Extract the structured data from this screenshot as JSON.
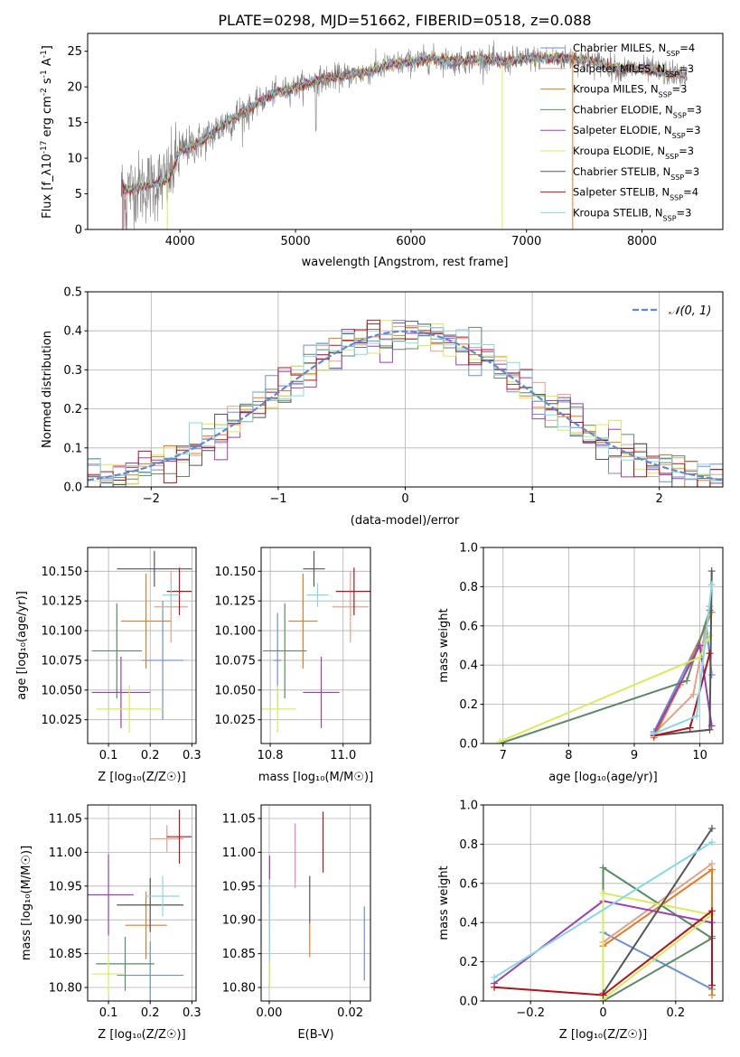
{
  "title": "PLATE=0298, MJD=51662, FIBERID=0518, z=0.088",
  "colors": {
    "Chabrier MILES": "#6a8fd6",
    "Salpeter MILES": "#e8a088",
    "Kroupa MILES": "#e57b22",
    "Chabrier ELODIE": "#5b8a64",
    "Salpeter ELODIE": "#9b3fb5",
    "Kroupa ELODIE": "#d8ec5a",
    "Chabrier STELIB": "#555555",
    "Salpeter STELIB": "#b3131b",
    "Kroupa STELIB": "#85d8e8",
    "extra_pink": "#e888b8",
    "gaussian": "#5b8ad6",
    "data": "#808080"
  },
  "chart_data": [
    {
      "id": "spectrum",
      "type": "line",
      "xlabel": "wavelength [Angstrom, rest frame]",
      "ylabel": "Flux [f_λ10^{-17} erg cm^{-2} s^{-1} A^{-1}]",
      "xlim": [
        3200,
        8700
      ],
      "ylim": [
        0,
        27.5
      ],
      "xticks": [
        4000,
        5000,
        6000,
        7000,
        8000
      ],
      "yticks": [
        0,
        5,
        10,
        15,
        20,
        25
      ],
      "grid": false,
      "legend": "right",
      "data_range": [
        3490,
        8390
      ],
      "continuum": [
        [
          3490,
          5.5
        ],
        [
          3700,
          6.0
        ],
        [
          3900,
          7.0
        ],
        [
          4000,
          11.0
        ],
        [
          4200,
          12.5
        ],
        [
          4400,
          15.0
        ],
        [
          4600,
          17.0
        ],
        [
          4800,
          19.0
        ],
        [
          5000,
          20.0
        ],
        [
          5200,
          21.0
        ],
        [
          5400,
          21.5
        ],
        [
          5600,
          22.0
        ],
        [
          5800,
          23.0
        ],
        [
          6000,
          23.5
        ],
        [
          6200,
          24.0
        ],
        [
          6400,
          23.5
        ],
        [
          6600,
          24.0
        ],
        [
          6800,
          23.5
        ],
        [
          7000,
          24.0
        ],
        [
          7200,
          24.0
        ],
        [
          7400,
          24.0
        ],
        [
          7600,
          23.5
        ],
        [
          7800,
          22.5
        ],
        [
          8000,
          22.5
        ],
        [
          8200,
          22.0
        ],
        [
          8390,
          21.5
        ]
      ],
      "series": [
        {
          "legend": "Chabrier MILES, N",
          "sub": "SSP",
          "suffix": "=4"
        },
        {
          "legend": "Salpeter MILES, N",
          "sub": "SSP",
          "suffix": "=3"
        },
        {
          "legend": "Kroupa MILES, N",
          "sub": "SSP",
          "suffix": "=3"
        },
        {
          "legend": "Chabrier ELODIE, N",
          "sub": "SSP",
          "suffix": "=3"
        },
        {
          "legend": "Salpeter ELODIE, N",
          "sub": "SSP",
          "suffix": "=3"
        },
        {
          "legend": "Kroupa ELODIE, N",
          "sub": "SSP",
          "suffix": "=3"
        },
        {
          "legend": "Chabrier STELIB, N",
          "sub": "SSP",
          "suffix": "=3"
        },
        {
          "legend": "Salpeter STELIB, N",
          "sub": "SSP",
          "suffix": "=4"
        },
        {
          "legend": "Kroupa STELIB, N",
          "sub": "SSP",
          "suffix": "=3"
        }
      ]
    },
    {
      "id": "residuals",
      "type": "histogram",
      "xlabel": "(data-model)/error",
      "ylabel": "Normed distribution",
      "xlim": [
        -2.5,
        2.5
      ],
      "ylim": [
        0,
        0.5
      ],
      "xticks": [
        -2,
        -1,
        0,
        1,
        2
      ],
      "yticks": [
        0.0,
        0.1,
        0.2,
        0.3,
        0.4,
        0.5
      ],
      "grid": true,
      "legend": "top-right",
      "legend_label": "𝒩(0, 1)",
      "bin_width": 0.1
    },
    {
      "id": "age_vs_Z",
      "type": "errorbar",
      "xlabel": "Z [log₁₀(Z/Z☉)]",
      "ylabel": "age  [log₁₀(age/yr)]",
      "xlim": [
        0.05,
        0.31
      ],
      "ylim": [
        10.005,
        10.17
      ],
      "xticks": [
        0.1,
        0.2,
        0.3
      ],
      "yticks": [
        10.025,
        10.05,
        10.075,
        10.1,
        10.125,
        10.15
      ],
      "grid": true,
      "points": [
        {
          "model": "Chabrier MILES",
          "x": 0.23,
          "y": 10.075,
          "xerr": 0.05,
          "yerr": 0.05
        },
        {
          "model": "Salpeter MILES",
          "x": 0.25,
          "y": 10.12,
          "xerr": 0.04,
          "yerr": 0.03
        },
        {
          "model": "Kroupa MILES",
          "x": 0.19,
          "y": 10.108,
          "xerr": 0.06,
          "yerr": 0.04
        },
        {
          "model": "Chabrier ELODIE",
          "x": 0.12,
          "y": 10.083,
          "xerr": 0.06,
          "yerr": 0.04
        },
        {
          "model": "Salpeter ELODIE",
          "x": 0.13,
          "y": 10.048,
          "xerr": 0.07,
          "yerr": 0.03
        },
        {
          "model": "Kroupa ELODIE",
          "x": 0.15,
          "y": 10.034,
          "xerr": 0.08,
          "yerr": 0.02
        },
        {
          "model": "Chabrier STELIB",
          "x": 0.21,
          "y": 10.152,
          "xerr": 0.09,
          "yerr": 0.015
        },
        {
          "model": "Salpeter STELIB",
          "x": 0.27,
          "y": 10.133,
          "xerr": 0.03,
          "yerr": 0.02
        },
        {
          "model": "Kroupa STELIB",
          "x": 0.25,
          "y": 10.13,
          "xerr": 0.02,
          "yerr": 0.01
        }
      ]
    },
    {
      "id": "age_vs_mass",
      "type": "errorbar",
      "xlabel": "mass [log₁₀(M/M☉)]",
      "ylabel": "",
      "xlim": [
        10.775,
        11.075
      ],
      "ylim": [
        10.005,
        10.17
      ],
      "xticks": [
        10.8,
        11.0
      ],
      "yticks": [
        10.025,
        10.05,
        10.075,
        10.1,
        10.125,
        10.15
      ],
      "grid": true,
      "points": [
        {
          "model": "Chabrier MILES",
          "x": 10.82,
          "y": 10.075,
          "xerr": 0.01,
          "yerr": 0.04
        },
        {
          "model": "Salpeter MILES",
          "x": 11.02,
          "y": 10.12,
          "xerr": 0.05,
          "yerr": 0.03
        },
        {
          "model": "Kroupa MILES",
          "x": 10.89,
          "y": 10.108,
          "xerr": 0.04,
          "yerr": 0.04
        },
        {
          "model": "Chabrier ELODIE",
          "x": 10.84,
          "y": 10.083,
          "xerr": 0.06,
          "yerr": 0.04
        },
        {
          "model": "Salpeter ELODIE",
          "x": 10.94,
          "y": 10.048,
          "xerr": 0.05,
          "yerr": 0.03
        },
        {
          "model": "Kroupa ELODIE",
          "x": 10.82,
          "y": 10.034,
          "xerr": 0.05,
          "yerr": 0.02
        },
        {
          "model": "Chabrier STELIB",
          "x": 10.92,
          "y": 10.152,
          "xerr": 0.03,
          "yerr": 0.015
        },
        {
          "model": "Salpeter STELIB",
          "x": 11.03,
          "y": 10.133,
          "xerr": 0.05,
          "yerr": 0.02
        },
        {
          "model": "Kroupa STELIB",
          "x": 10.93,
          "y": 10.13,
          "xerr": 0.03,
          "yerr": 0.01
        }
      ]
    },
    {
      "id": "mass_weight_vs_age",
      "type": "line",
      "xlabel": "age  [log₁₀(age/yr)]",
      "ylabel": "mass weight",
      "xlim": [
        6.7,
        10.35
      ],
      "ylim": [
        0,
        1
      ],
      "xticks": [
        7,
        8,
        9,
        10
      ],
      "yticks": [
        0.0,
        0.2,
        0.4,
        0.6,
        0.8,
        1.0
      ],
      "grid": true,
      "series": [
        {
          "model": "Chabrier MILES",
          "x": [
            9.3,
            10.1,
            10.18
          ],
          "y": [
            0.06,
            0.6,
            0.35
          ]
        },
        {
          "model": "Salpeter MILES",
          "x": [
            9.3,
            9.9,
            10.15
          ],
          "y": [
            0.05,
            0.25,
            0.7
          ]
        },
        {
          "model": "Kroupa MILES",
          "x": [
            9.3,
            9.7,
            10.18
          ],
          "y": [
            0.03,
            0.3,
            0.67
          ]
        },
        {
          "model": "Chabrier ELODIE",
          "x": [
            6.95,
            9.8,
            10.15
          ],
          "y": [
            0.0,
            0.32,
            0.68
          ]
        },
        {
          "model": "Salpeter ELODIE",
          "x": [
            9.3,
            10.0,
            10.18
          ],
          "y": [
            0.05,
            0.5,
            0.09
          ]
        },
        {
          "model": "Kroupa ELODIE",
          "x": [
            6.95,
            10.0,
            10.15
          ],
          "y": [
            0.01,
            0.44,
            0.55
          ]
        },
        {
          "model": "Chabrier STELIB",
          "x": [
            9.3,
            10.15,
            10.18
          ],
          "y": [
            0.04,
            0.07,
            0.88
          ]
        },
        {
          "model": "Salpeter STELIB",
          "x": [
            9.3,
            9.85,
            10.15
          ],
          "y": [
            0.04,
            0.08,
            0.46
          ]
        },
        {
          "model": "Kroupa STELIB",
          "x": [
            9.3,
            9.95,
            10.18
          ],
          "y": [
            0.05,
            0.14,
            0.81
          ]
        }
      ]
    },
    {
      "id": "mass_vs_Z",
      "type": "errorbar",
      "xlabel": "Z [log₁₀(Z/Z☉)]",
      "ylabel": "mass [log₁₀(M/M☉)]",
      "xlim": [
        0.05,
        0.31
      ],
      "ylim": [
        10.78,
        11.07
      ],
      "xticks": [
        0.1,
        0.2,
        0.3
      ],
      "yticks": [
        10.8,
        10.85,
        10.9,
        10.95,
        11.0,
        11.05
      ],
      "grid": true,
      "points": [
        {
          "model": "Chabrier MILES",
          "x": 0.2,
          "y": 10.818,
          "xerr": 0.08,
          "yerr": 0.05
        },
        {
          "model": "Salpeter MILES",
          "x": 0.24,
          "y": 11.02,
          "xerr": 0.04,
          "yerr": 0.02
        },
        {
          "model": "Kroupa MILES",
          "x": 0.19,
          "y": 10.892,
          "xerr": 0.05,
          "yerr": 0.05
        },
        {
          "model": "Chabrier ELODIE",
          "x": 0.14,
          "y": 10.835,
          "xerr": 0.07,
          "yerr": 0.04
        },
        {
          "model": "Salpeter ELODIE",
          "x": 0.1,
          "y": 10.937,
          "xerr": 0.06,
          "yerr": 0.06
        },
        {
          "model": "Kroupa ELODIE",
          "x": 0.1,
          "y": 10.82,
          "xerr": 0.04,
          "yerr": 0.03
        },
        {
          "model": "Chabrier STELIB",
          "x": 0.2,
          "y": 10.922,
          "xerr": 0.08,
          "yerr": 0.04
        },
        {
          "model": "Salpeter STELIB",
          "x": 0.27,
          "y": 11.023,
          "xerr": 0.03,
          "yerr": 0.04
        },
        {
          "model": "Kroupa STELIB",
          "x": 0.23,
          "y": 10.935,
          "xerr": 0.04,
          "yerr": 0.03
        }
      ]
    },
    {
      "id": "mass_vs_EBV",
      "type": "errorbar",
      "xlabel": "E(B-V)",
      "ylabel": "",
      "xlim": [
        -0.002,
        0.025
      ],
      "ylim": [
        10.78,
        11.07
      ],
      "xticks": [
        0.0,
        0.02
      ],
      "yticks": [
        10.8,
        10.85,
        10.9,
        10.95,
        11.0,
        11.05
      ],
      "grid": true,
      "points": [
        {
          "model": "Chabrier MILES",
          "x": 0.0235,
          "y": 10.865,
          "xerr": 0.0,
          "yerr": 0.055
        },
        {
          "model": "Kroupa MILES",
          "x": 0.01,
          "y": 10.87,
          "xerr": 0.0,
          "yerr": 0.025
        },
        {
          "model": "Salpeter ELODIE",
          "x": 0.0001,
          "y": 10.96,
          "xerr": 0.0,
          "yerr": 0.035
        },
        {
          "model": "Kroupa ELODIE",
          "x": 0.0001,
          "y": 10.84,
          "xerr": 0.0,
          "yerr": 0.04
        },
        {
          "model": "Chabrier STELIB",
          "x": 0.01,
          "y": 10.93,
          "xerr": 0.0,
          "yerr": 0.035
        },
        {
          "model": "Salpeter STELIB",
          "x": 0.0133,
          "y": 11.015,
          "xerr": 0.0,
          "yerr": 0.045
        },
        {
          "model": "extra_pink",
          "x": 0.0064,
          "y": 10.995,
          "xerr": 0.0,
          "yerr": 0.048
        },
        {
          "model": "Kroupa STELIB",
          "x": 0.0001,
          "y": 10.9,
          "xerr": 0.0,
          "yerr": 0.06
        }
      ]
    },
    {
      "id": "mass_weight_vs_Z",
      "type": "line",
      "xlabel": "Z [log₁₀(Z/Z☉)]",
      "ylabel": "mass weight",
      "xlim": [
        -0.33,
        0.33
      ],
      "ylim": [
        0,
        1
      ],
      "xticks": [
        -0.2,
        0.0,
        0.2
      ],
      "yticks": [
        0.0,
        0.2,
        0.4,
        0.6,
        0.8,
        1.0
      ],
      "grid": true,
      "series": [
        {
          "model": "Chabrier MILES",
          "x": [
            0.0,
            0.3,
            0.3
          ],
          "y": [
            0.35,
            0.06,
            0.33
          ]
        },
        {
          "model": "Salpeter MILES",
          "x": [
            0.0,
            0.3
          ],
          "y": [
            0.3,
            0.7
          ]
        },
        {
          "model": "Kroupa MILES",
          "x": [
            0.0,
            0.3,
            0.3
          ],
          "y": [
            0.28,
            0.67,
            0.03
          ]
        },
        {
          "model": "Chabrier ELODIE",
          "x": [
            0.0,
            0.3,
            0.3,
            0.0,
            0.0
          ],
          "y": [
            0.0,
            0.32,
            0.32,
            0.68,
            0.0
          ]
        },
        {
          "model": "Salpeter ELODIE",
          "x": [
            -0.3,
            0.0,
            0.3
          ],
          "y": [
            0.09,
            0.51,
            0.4
          ]
        },
        {
          "model": "Kroupa ELODIE",
          "x": [
            0.0,
            0.3,
            0.0,
            0.0
          ],
          "y": [
            0.01,
            0.44,
            0.55,
            0.0
          ]
        },
        {
          "model": "Chabrier STELIB",
          "x": [
            0.0,
            0.3
          ],
          "y": [
            0.04,
            0.88
          ]
        },
        {
          "model": "Salpeter STELIB",
          "x": [
            -0.3,
            0.0,
            0.3,
            0.3
          ],
          "y": [
            0.07,
            0.03,
            0.46,
            0.08
          ]
        },
        {
          "model": "Kroupa STELIB",
          "x": [
            -0.3,
            0.3
          ],
          "y": [
            0.12,
            0.81
          ]
        }
      ]
    }
  ]
}
